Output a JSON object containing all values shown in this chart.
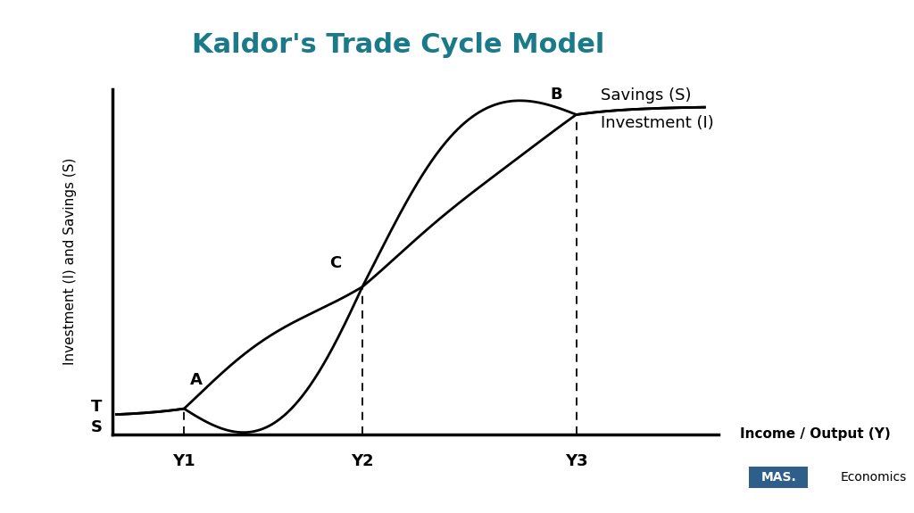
{
  "title": "Kaldor's Trade Cycle Model",
  "title_color": "#1a7a8a",
  "title_fontsize": 22,
  "ylabel": "Investment (I) and Savings (S)",
  "xlabel": "Income / Output (Y)",
  "background_color": "#ffffff",
  "curve_color": "#000000",
  "curve_lw": 2.0,
  "annotation_fontsize": 13,
  "axis_label_fontsize": 11,
  "tick_label_fontsize": 13,
  "mas_box_color": "#2d5f8a",
  "mas_text": "MAS.",
  "econ_text": "Economics",
  "label_A": "A",
  "label_B": "B",
  "label_C": "C",
  "label_T": "T",
  "label_S_axis": "S",
  "label_Y1": "Y1",
  "label_Y2": "Y2",
  "label_Y3": "Y3",
  "label_savings": "Savings (S)",
  "label_investment": "Investment (I)"
}
